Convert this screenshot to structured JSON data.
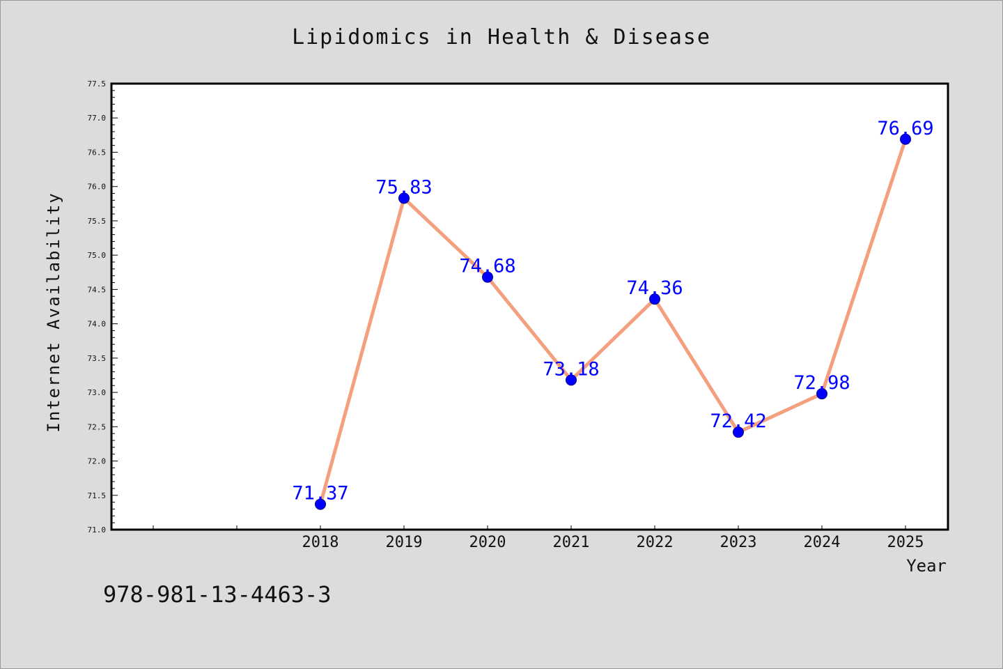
{
  "chart_data": {
    "type": "line",
    "title": "Lipidomics in Health & Disease",
    "xlabel": "Year",
    "ylabel": "Internet Availability",
    "categories": [
      "2018",
      "2019",
      "2020",
      "2021",
      "2022",
      "2023",
      "2024",
      "2025"
    ],
    "values": [
      71.37,
      75.83,
      74.68,
      73.18,
      74.36,
      72.42,
      72.98,
      76.69
    ],
    "value_labels": [
      "71.37",
      "75.83",
      "74.68",
      "73.18",
      "74.36",
      "72.42",
      "72.98",
      "76.69"
    ],
    "ylim": [
      71.0,
      77.5
    ],
    "yticks": [
      "71.0",
      "71.5",
      "72.0",
      "72.5",
      "73.0",
      "73.5",
      "74.0",
      "74.5",
      "75.0",
      "75.5",
      "76.0",
      "76.5",
      "77.0",
      "77.5"
    ],
    "grid": false,
    "legend": "none",
    "colors": {
      "line": "#f4a07e",
      "marker": "#0000ff",
      "label": "#0000ff",
      "background": "#dcdcdc",
      "plot_background": "#ffffff"
    }
  },
  "footer": {
    "isbn": "978-981-13-4463-3"
  }
}
